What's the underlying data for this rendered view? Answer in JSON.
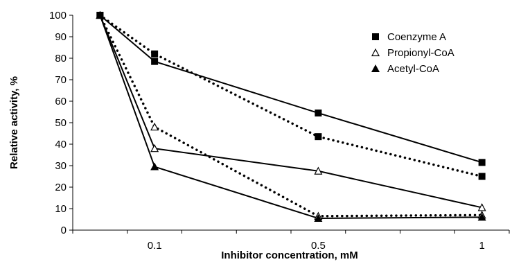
{
  "chart_data": {
    "type": "line",
    "title": "",
    "xlabel": "Inhibitor concentration, mM",
    "ylabel": "Relative activity, %",
    "ylim": [
      0,
      100
    ],
    "yticks": [
      0,
      10,
      20,
      30,
      40,
      50,
      60,
      70,
      80,
      90,
      100
    ],
    "x_categories": [
      "",
      "0.1",
      "",
      "",
      "0.5",
      "",
      "",
      "1"
    ],
    "grid": false,
    "legend_position": "top-right",
    "series": [
      {
        "name": "Coenzyme A",
        "marker": "filled-square",
        "lines": [
          {
            "style": "solid",
            "x_index": [
              0,
              1,
              4,
              7
            ],
            "values": [
              100,
              78.5,
              54.5,
              31.5
            ]
          },
          {
            "style": "dotted",
            "x_index": [
              0,
              1,
              4,
              7
            ],
            "values": [
              100,
              82,
              43.5,
              25
            ]
          }
        ]
      },
      {
        "name": "Propionyl-CoA",
        "marker": "open-triangle",
        "lines": [
          {
            "style": "solid",
            "x_index": [
              0,
              1,
              4,
              7
            ],
            "values": [
              100,
              38,
              27.5,
              10.5
            ]
          },
          {
            "style": "dotted",
            "x_index": [
              0,
              1,
              4,
              7
            ],
            "values": [
              100,
              48,
              6.5,
              7
            ]
          }
        ]
      },
      {
        "name": "Acetyl-CoA",
        "marker": "filled-triangle",
        "lines": [
          {
            "style": "solid",
            "x_index": [
              0,
              1,
              4,
              7
            ],
            "values": [
              100,
              29.5,
              5.5,
              6
            ]
          }
        ]
      }
    ]
  }
}
